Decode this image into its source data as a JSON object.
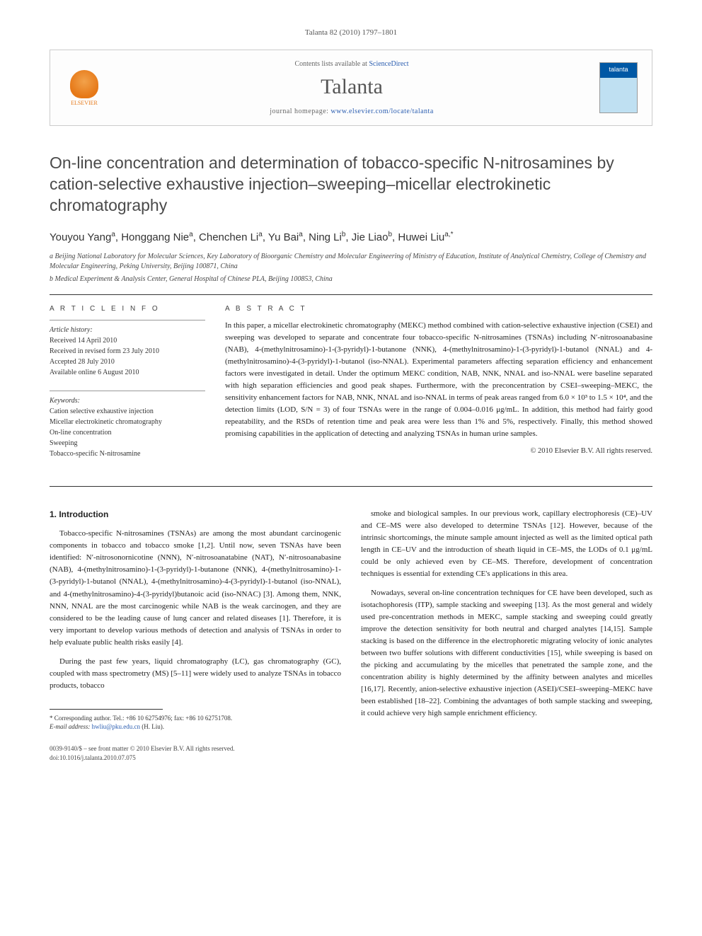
{
  "journal_ref": "Talanta 82 (2010) 1797–1801",
  "header": {
    "contents_prefix": "Contents lists available at ",
    "contents_link": "ScienceDirect",
    "journal_name": "Talanta",
    "homepage_prefix": "journal homepage: ",
    "homepage_url": "www.elsevier.com/locate/talanta",
    "publisher": "ELSEVIER"
  },
  "title": "On-line concentration and determination of tobacco-specific N-nitrosamines by cation-selective exhaustive injection–sweeping–micellar electrokinetic chromatography",
  "authors_html": "Youyou Yang<sup>a</sup>, Honggang Nie<sup>a</sup>, Chenchen Li<sup>a</sup>, Yu Bai<sup>a</sup>, Ning Li<sup>b</sup>, Jie Liao<sup>b</sup>, Huwei Liu<sup>a,*</sup>",
  "affiliations": [
    "a Beijing National Laboratory for Molecular Sciences, Key Laboratory of Bioorganic Chemistry and Molecular Engineering of Ministry of Education, Institute of Analytical Chemistry, College of Chemistry and Molecular Engineering, Peking University, Beijing 100871, China",
    "b Medical Experiment & Analysis Center, General Hospital of Chinese PLA, Beijing 100853, China"
  ],
  "info_heading": "A R T I C L E   I N F O",
  "abs_heading": "A B S T R A C T",
  "history_label": "Article history:",
  "history": [
    "Received 14 April 2010",
    "Received in revised form 23 July 2010",
    "Accepted 28 July 2010",
    "Available online 6 August 2010"
  ],
  "keywords_label": "Keywords:",
  "keywords": [
    "Cation selective exhaustive injection",
    "Micellar electrokinetic chromatography",
    "On-line concentration",
    "Sweeping",
    "Tobacco-specific N-nitrosamine"
  ],
  "abstract": "In this paper, a micellar electrokinetic chromatography (MEKC) method combined with cation-selective exhaustive injection (CSEI) and sweeping was developed to separate and concentrate four tobacco-specific N-nitrosamines (TSNAs) including N′-nitrosoanabasine (NAB), 4-(methylnitrosamino)-1-(3-pyridyl)-1-butanone (NNK), 4-(methylnitrosamino)-1-(3-pyridyl)-1-butanol (NNAL) and 4-(methylnitrosamino)-4-(3-pyridyl)-1-butanol (iso-NNAL). Experimental parameters affecting separation efficiency and enhancement factors were investigated in detail. Under the optimum MEKC condition, NAB, NNK, NNAL and iso-NNAL were baseline separated with high separation efficiencies and good peak shapes. Furthermore, with the preconcentration by CSEI–sweeping–MEKC, the sensitivity enhancement factors for NAB, NNK, NNAL and iso-NNAL in terms of peak areas ranged from 6.0 × 10³ to 1.5 × 10⁴, and the detection limits (LOD, S/N = 3) of four TSNAs were in the range of 0.004–0.016 μg/mL. In addition, this method had fairly good repeatability, and the RSDs of retention time and peak area were less than 1% and 5%, respectively. Finally, this method showed promising capabilities in the application of detecting and analyzing TSNAs in human urine samples.",
  "copyright": "© 2010 Elsevier B.V. All rights reserved.",
  "section1_heading": "1. Introduction",
  "para1": "Tobacco-specific N-nitrosamines (TSNAs) are among the most abundant carcinogenic components in tobacco and tobacco smoke [1,2]. Until now, seven TSNAs have been identified: N′-nitrosonornicotine (NNN), N′-nitrosoanatabine (NAT), N′-nitrosoanabasine (NAB), 4-(methylnitrosamino)-1-(3-pyridyl)-1-butanone (NNK), 4-(methylnitrosamino)-1-(3-pyridyl)-1-butanol (NNAL), 4-(methylnitrosamino)-4-(3-pyridyl)-1-butanol (iso-NNAL), and 4-(methylnitrosamino)-4-(3-pyridyl)butanoic acid (iso-NNAC) [3]. Among them, NNK, NNN, NNAL are the most carcinogenic while NAB is the weak carcinogen, and they are considered to be the leading cause of lung cancer and related diseases [1]. Therefore, it is very important to develop various methods of detection and analysis of TSNAs in order to help evaluate public health risks easily [4].",
  "para2": "During the past few years, liquid chromatography (LC), gas chromatography (GC), coupled with mass spectrometry (MS) [5–11] were widely used to analyze TSNAs in tobacco products, tobacco",
  "para3": "smoke and biological samples. In our previous work, capillary electrophoresis (CE)–UV and CE–MS were also developed to determine TSNAs [12]. However, because of the intrinsic shortcomings, the minute sample amount injected as well as the limited optical path length in CE–UV and the introduction of sheath liquid in CE–MS, the LODs of 0.1 μg/mL could be only achieved even by CE–MS. Therefore, development of concentration techniques is essential for extending CE's applications in this area.",
  "para4": "Nowadays, several on-line concentration techniques for CE have been developed, such as isotachophoresis (ITP), sample stacking and sweeping [13]. As the most general and widely used pre-concentration methods in MEKC, sample stacking and sweeping could greatly improve the detection sensitivity for both neutral and charged analytes [14,15]. Sample stacking is based on the difference in the electrophoretic migrating velocity of ionic analytes between two buffer solutions with different conductivities [15], while sweeping is based on the picking and accumulating by the micelles that penetrated the sample zone, and the concentration ability is highly determined by the affinity between analytes and micelles [16,17]. Recently, anion-selective exhaustive injection (ASEI)/CSEI–sweeping–MEKC have been established [18–22]. Combining the advantages of both sample stacking and sweeping, it could achieve very high sample enrichment efficiency.",
  "footnote_corr": "* Corresponding author. Tel.: +86 10 62754976; fax: +86 10 62751708.",
  "footnote_email_label": "E-mail address: ",
  "footnote_email": "hwliu@pku.edu.cn",
  "footnote_email_who": " (H. Liu).",
  "bottom1": "0039-9140/$ – see front matter © 2010 Elsevier B.V. All rights reserved.",
  "bottom2": "doi:10.1016/j.talanta.2010.07.075",
  "colors": {
    "link": "#2a5db0",
    "elsevier_orange": "#e67817",
    "cover_blue": "#0058a5",
    "text": "#222222",
    "rule": "#333333"
  }
}
